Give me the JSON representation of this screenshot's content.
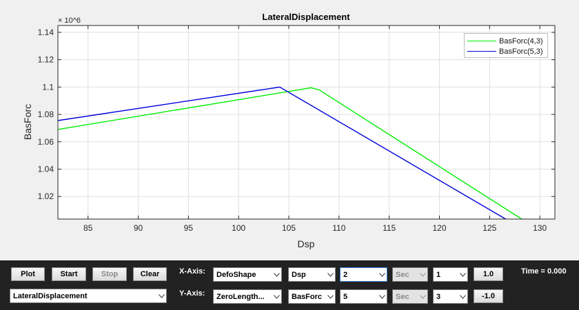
{
  "chart_data": {
    "type": "line",
    "title": "LateralDisplacement",
    "xlabel": "Dsp",
    "ylabel": "BasForc",
    "y_exponent": "× 10^6",
    "xlim": [
      82,
      131.5
    ],
    "ylim": [
      1.0035,
      1.145
    ],
    "x_ticks": [
      85,
      90,
      95,
      100,
      105,
      110,
      115,
      120,
      125,
      130
    ],
    "y_ticks": [
      1.02,
      1.04,
      1.06,
      1.08,
      1.1,
      1.12,
      1.14
    ],
    "grid": true,
    "legend_position": "top-right",
    "series": [
      {
        "name": "BasForc(4,3)",
        "color": "#00ee00",
        "x": [
          82,
          107.2,
          108,
          128.2
        ],
        "y": [
          1.069,
          1.0995,
          1.098,
          1.0035
        ]
      },
      {
        "name": "BasForc(5,3)",
        "color": "#0000dd",
        "x": [
          82,
          104.1,
          126.6
        ],
        "y": [
          1.0755,
          1.1,
          1.0035
        ]
      }
    ]
  },
  "controls": {
    "plot": "Plot",
    "start": "Start",
    "stop": "Stop",
    "clear": "Clear",
    "plot_select": "LateralDisplacement",
    "x_axis_label": "X-Axis:",
    "y_axis_label": "Y-Axis:",
    "x_source": "DefoShape",
    "x_type": "Dsp",
    "x_index": "2",
    "x_time": "Sec",
    "x_mult_sel": "1",
    "x_factor": "1.0",
    "y_source": "ZeroLength...",
    "y_type": "BasForc",
    "y_index": "5",
    "y_time": "Sec",
    "y_mult_sel": "3",
    "y_factor": "-1.0",
    "time_label": "Time =",
    "time_value": "0.000"
  },
  "colors": {
    "panel": "#222222",
    "chart_bg": "#ffffff"
  }
}
